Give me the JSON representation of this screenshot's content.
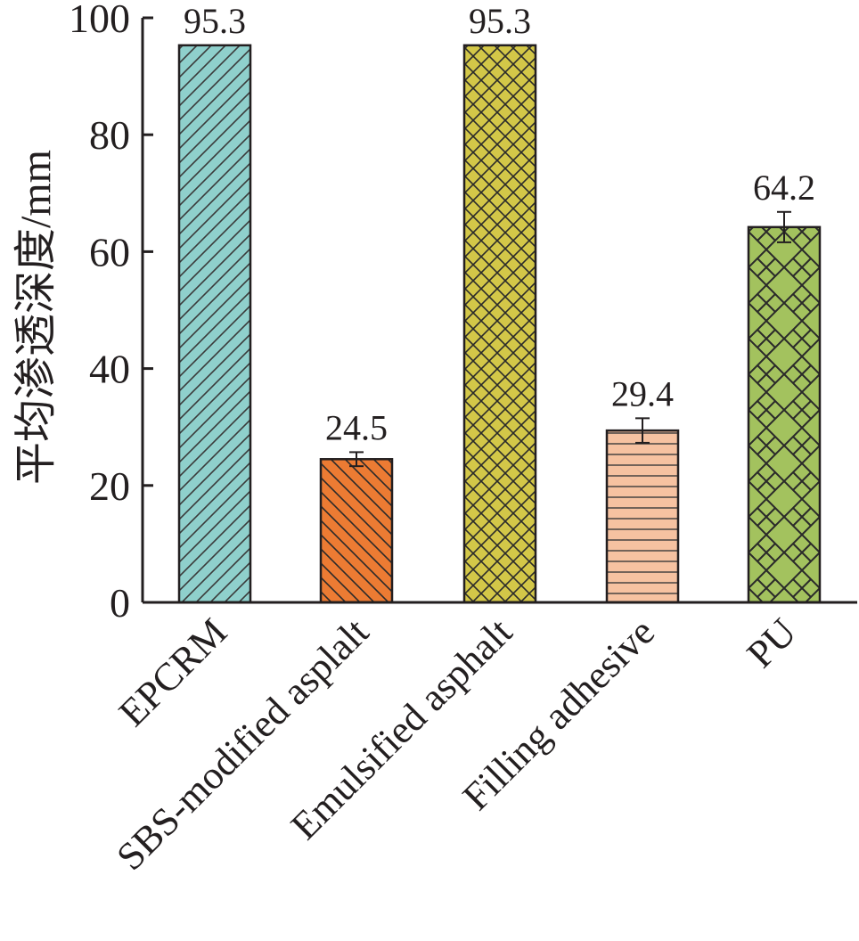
{
  "chart_data": {
    "type": "bar",
    "title": "",
    "xlabel": "",
    "ylabel": "平均渗透深度/mm",
    "ylim": [
      0,
      100
    ],
    "yticks": [
      0,
      20,
      40,
      60,
      80,
      100
    ],
    "grid": false,
    "categories": [
      "EPCRM",
      "SBS-modified asplalt",
      "Emulsified asphalt",
      "Filling adhesive",
      "PU"
    ],
    "values": [
      95.3,
      24.5,
      95.3,
      29.4,
      64.2
    ],
    "value_labels": [
      "95.3",
      "24.5",
      "95.3",
      "29.4",
      "64.2"
    ],
    "errors": [
      0,
      1.2,
      0,
      2.1,
      2.6
    ],
    "colors": [
      "#8fd0cc",
      "#ec7b33",
      "#d3c748",
      "#f6c2a1",
      "#a3c25e"
    ],
    "patterns": [
      "diagonal-up",
      "diagonal-down",
      "crosshatch",
      "horizontal",
      "brick"
    ]
  }
}
